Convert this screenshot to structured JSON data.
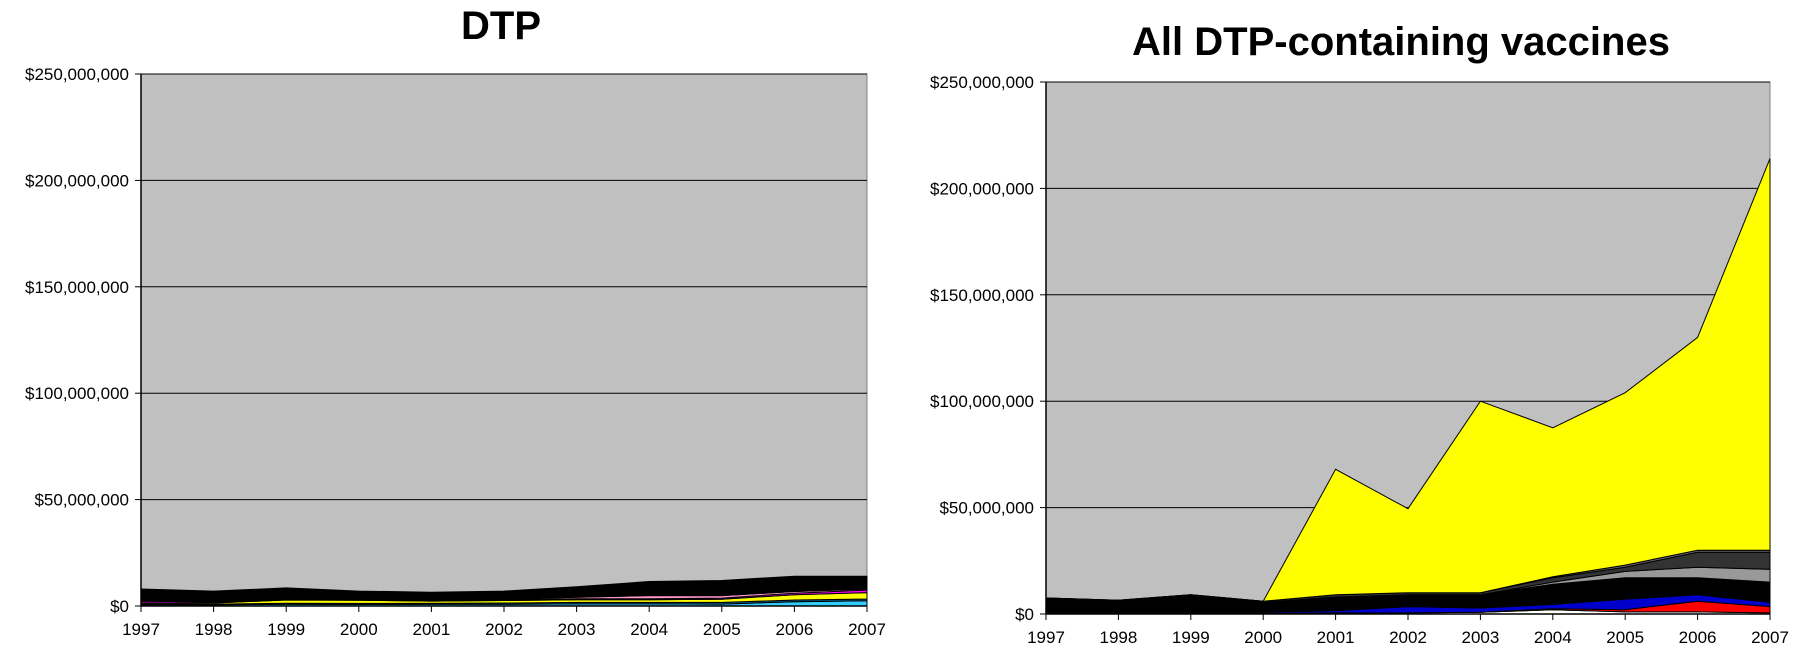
{
  "chart_data": [
    {
      "type": "area",
      "stacked": true,
      "title": "DTP",
      "x": [
        "1997",
        "1998",
        "1999",
        "2000",
        "2001",
        "2002",
        "2003",
        "2004",
        "2005",
        "2006",
        "2007"
      ],
      "y_tick_labels": [
        "$250,000,000",
        "$200,000,000",
        "$150,000,000",
        "$100,000,000",
        "$50,000,000",
        "$0"
      ],
      "ylim": [
        0,
        250000000
      ],
      "grid": true,
      "background_color": "#c0c0c0",
      "series": [
        {
          "color": "#33ccff",
          "values": [
            500000,
            500000,
            800000,
            700000,
            800000,
            800000,
            1000000,
            1000000,
            900000,
            2000000,
            2500000
          ]
        },
        {
          "color": "#006699",
          "values": [
            500000,
            400000,
            500000,
            500000,
            500000,
            600000,
            700000,
            700000,
            800000,
            800000,
            800000
          ]
        },
        {
          "color": "#ffff00",
          "values": [
            500000,
            500000,
            1500000,
            1500000,
            1000000,
            1200000,
            1200000,
            1200000,
            1500000,
            2500000,
            3000000
          ]
        },
        {
          "color": "#ff00ff",
          "values": [
            800000,
            500000,
            500000,
            300000,
            300000,
            400000,
            500000,
            500000,
            500000,
            700000,
            1200000
          ]
        },
        {
          "color": "#ff99cc",
          "values": [
            200000,
            200000,
            200000,
            200000,
            200000,
            300000,
            700000,
            1500000,
            1200000,
            800000,
            500000
          ]
        },
        {
          "color": "#000000",
          "values": [
            5500000,
            4900000,
            5000000,
            3800000,
            3700000,
            3700000,
            4900000,
            6600000,
            7100000,
            7200000,
            6000000
          ]
        }
      ]
    },
    {
      "type": "area",
      "stacked": true,
      "title": "All DTP-containing vaccines",
      "x": [
        "1997",
        "1998",
        "1999",
        "2000",
        "2001",
        "2002",
        "2003",
        "2004",
        "2005",
        "2006",
        "2007"
      ],
      "y_tick_labels": [
        "$250,000,000",
        "$200,000,000",
        "$150,000,000",
        "$100,000,000",
        "$50,000,000",
        "$0"
      ],
      "ylim": [
        0,
        250000000
      ],
      "grid": true,
      "background_color": "#c0c0c0",
      "series": [
        {
          "color": "#ffffff",
          "values": [
            300000,
            300000,
            300000,
            300000,
            500000,
            500000,
            800000,
            2000000,
            1000000,
            1000000,
            500000
          ]
        },
        {
          "color": "#ff0000",
          "values": [
            0,
            0,
            0,
            0,
            0,
            0,
            0,
            500000,
            1000000,
            5000000,
            3000000
          ]
        },
        {
          "color": "#0000cc",
          "values": [
            500000,
            500000,
            500000,
            500000,
            1000000,
            3000000,
            2000000,
            2000000,
            5000000,
            3000000,
            2000000
          ]
        },
        {
          "color": "#000000",
          "values": [
            6200000,
            5200000,
            7700000,
            4700000,
            6500000,
            5500000,
            6200000,
            9500000,
            10000000,
            8000000,
            9500000
          ]
        },
        {
          "color": "#999999",
          "values": [
            0,
            0,
            0,
            0,
            0,
            0,
            0,
            1000000,
            3000000,
            5000000,
            6000000
          ]
        },
        {
          "color": "#333333",
          "values": [
            500000,
            500000,
            500000,
            500000,
            1000000,
            1000000,
            1000000,
            2000000,
            2000000,
            7000000,
            8000000
          ]
        },
        {
          "color": "#666666",
          "values": [
            0,
            0,
            0,
            0,
            0,
            0,
            0,
            500000,
            1000000,
            1000000,
            1000000
          ]
        },
        {
          "color": "#ffff00",
          "values": [
            0,
            0,
            0,
            0,
            59000000,
            39500000,
            90000000,
            70000000,
            81000000,
            100000000,
            184000000
          ]
        }
      ]
    }
  ]
}
